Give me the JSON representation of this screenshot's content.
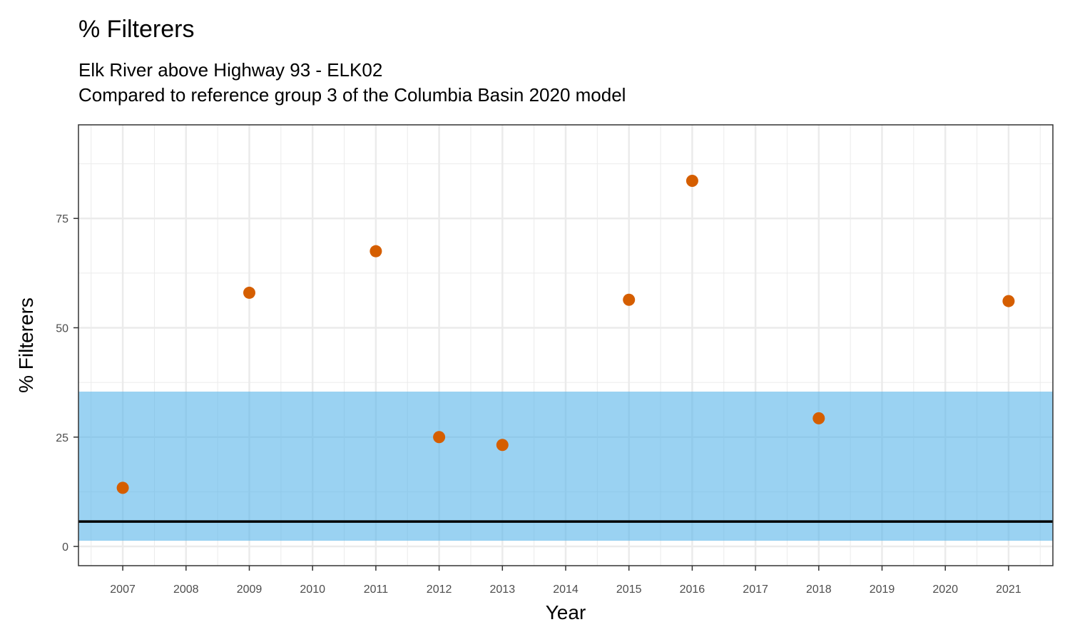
{
  "chart_data": {
    "type": "scatter",
    "title": "% Filterers",
    "subtitle_lines": [
      "Elk River above Highway 93 - ELK02",
      "Compared to reference group 3 of the Columbia Basin 2020 model"
    ],
    "xlabel": "Year",
    "ylabel": "% Filterers",
    "xlim": [
      2006.3,
      2021.7
    ],
    "ylim": [
      -4.4,
      96.4
    ],
    "x_ticks": [
      2007,
      2008,
      2009,
      2010,
      2011,
      2012,
      2013,
      2014,
      2015,
      2016,
      2017,
      2018,
      2019,
      2020,
      2021
    ],
    "y_ticks": [
      0,
      25,
      50,
      75
    ],
    "grid": true,
    "points": [
      {
        "x": 2007,
        "y": 13.4
      },
      {
        "x": 2009,
        "y": 58.0
      },
      {
        "x": 2011,
        "y": 67.5
      },
      {
        "x": 2012,
        "y": 25.0
      },
      {
        "x": 2013,
        "y": 23.2
      },
      {
        "x": 2015,
        "y": 56.4
      },
      {
        "x": 2016,
        "y": 83.6
      },
      {
        "x": 2018,
        "y": 29.3
      },
      {
        "x": 2021,
        "y": 56.1
      }
    ],
    "reference_band": {
      "low": 1.3,
      "high": 35.4
    },
    "reference_line": 5.7,
    "colors": {
      "points": "#D55E00",
      "band": "#56B4E9",
      "line": "#000000",
      "grid": "#EBEBEB"
    }
  }
}
